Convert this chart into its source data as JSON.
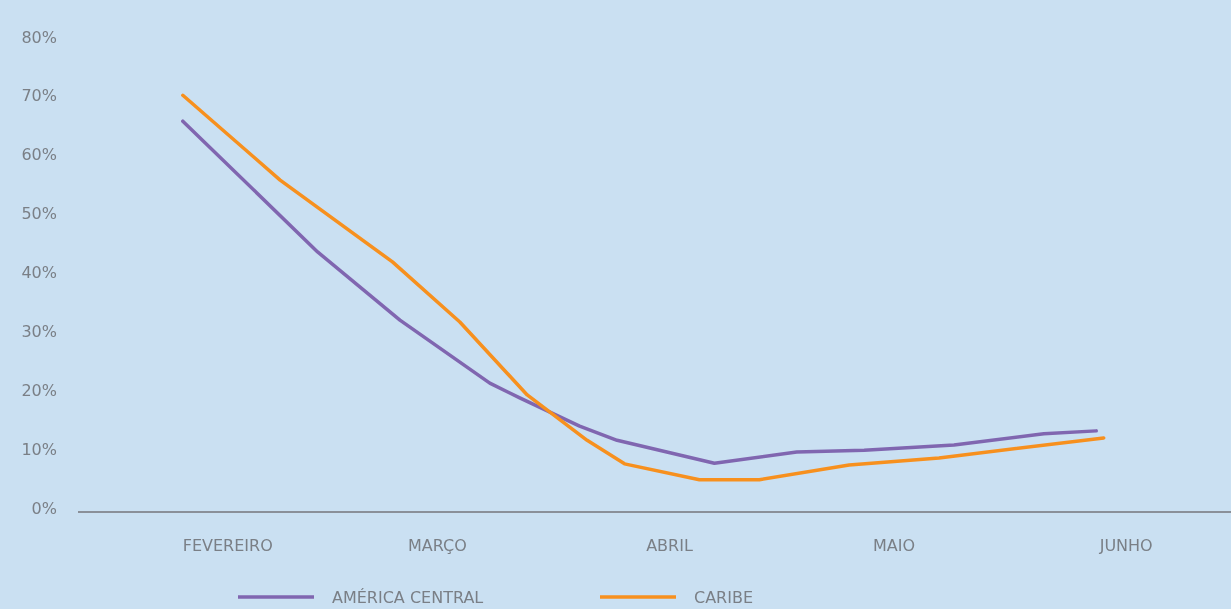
{
  "chart_data": {
    "type": "line",
    "xlim": [
      "--01-12",
      "--06-15"
    ],
    "xticks": [
      {
        "value": "--02-01",
        "label": "FEVEREIRO"
      },
      {
        "value": "--03-01",
        "label": "MARÇO"
      },
      {
        "value": "--04-01",
        "label": "ABRIL"
      },
      {
        "value": "--05-01",
        "label": "MAIO"
      },
      {
        "value": "--06-01",
        "label": "JUNHO"
      }
    ],
    "ylim": [
      0,
      80
    ],
    "yticks": [
      {
        "value": 0,
        "label": "0%"
      },
      {
        "value": 10,
        "label": "10%"
      },
      {
        "value": 20,
        "label": "20%"
      },
      {
        "value": 30,
        "label": "30%"
      },
      {
        "value": 40,
        "label": "40%"
      },
      {
        "value": 50,
        "label": "50%"
      },
      {
        "value": 60,
        "label": "60%"
      },
      {
        "value": 70,
        "label": "70%"
      },
      {
        "value": 80,
        "label": "80%"
      }
    ],
    "legend": "bottom",
    "line_style": "solid",
    "series": [
      {
        "name": "AMÉRICA CENTRAL",
        "color": "#8066b0",
        "x": [
          "--01-26",
          "--02-13",
          "--02-24",
          "--03-08",
          "--03-12",
          "--03-20",
          "--03-25",
          "--04-07",
          "--04-18",
          "--04-27",
          "--05-09",
          "--05-21",
          "--05-28"
        ],
        "values": [
          65.7,
          43.5,
          31.9,
          21.2,
          18.7,
          13.9,
          11.5,
          7.6,
          9.5,
          9.8,
          10.7,
          12.6,
          13.1
        ]
      },
      {
        "name": "CARIBE",
        "color": "#f7901e",
        "x": [
          "--01-26",
          "--02-08",
          "--02-23",
          "--03-04",
          "--03-13",
          "--03-21",
          "--03-26",
          "--04-05",
          "--04-13",
          "--04-25",
          "--05-07",
          "--05-29"
        ],
        "values": [
          70.1,
          55.7,
          41.8,
          31.6,
          19.2,
          11.5,
          7.5,
          4.8,
          4.8,
          7.3,
          8.5,
          11.9
        ]
      }
    ]
  }
}
